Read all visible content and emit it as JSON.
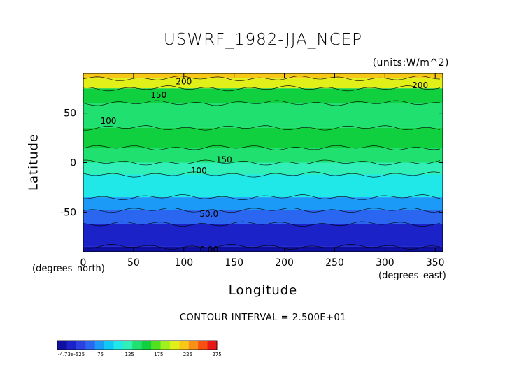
{
  "chart_data": {
    "type": "contour",
    "title": "USWRF_1982-JJA_NCEP",
    "units": "(units:W/m^2)",
    "xlabel": "Longitude",
    "ylabel": "Latitude",
    "x_unit_label": "(degrees_east)",
    "y_unit_label": "(degrees_north)",
    "xlim": [
      0,
      357.5
    ],
    "ylim": [
      -90,
      90
    ],
    "x_ticks": [
      "0",
      "50",
      "100",
      "150",
      "200",
      "250",
      "300",
      "350"
    ],
    "y_ticks": [
      "50",
      "0",
      "-50"
    ],
    "x_tick_values": [
      0,
      50,
      100,
      150,
      200,
      250,
      300,
      350
    ],
    "y_tick_values": [
      50,
      0,
      -50
    ],
    "contour_interval": "CONTOUR INTERVAL = 2.500E+01",
    "contour_labels": [
      {
        "text": "200",
        "lon": 100,
        "lat": 82
      },
      {
        "text": "150",
        "lon": 75,
        "lat": 68
      },
      {
        "text": "100",
        "lon": 25,
        "lat": 42
      },
      {
        "text": "150",
        "lon": 140,
        "lat": 3
      },
      {
        "text": "100",
        "lon": 115,
        "lat": -8
      },
      {
        "text": "50.0",
        "lon": 125,
        "lat": -52
      },
      {
        "text": "0.00",
        "lon": 125,
        "lat": -88
      },
      {
        "text": "200",
        "lon": 335,
        "lat": 78
      }
    ],
    "latitude_bands": [
      {
        "lat_top": 90,
        "lat_bottom": 85,
        "value": 230
      },
      {
        "lat_top": 85,
        "lat_bottom": 75,
        "value": 200
      },
      {
        "lat_top": 75,
        "lat_bottom": 60,
        "value": 150
      },
      {
        "lat_top": 60,
        "lat_bottom": 35,
        "value": 140
      },
      {
        "lat_top": 35,
        "lat_bottom": 15,
        "value": 150
      },
      {
        "lat_top": 15,
        "lat_bottom": 0,
        "value": 140
      },
      {
        "lat_top": 0,
        "lat_bottom": -12,
        "value": 115
      },
      {
        "lat_top": -12,
        "lat_bottom": -35,
        "value": 100
      },
      {
        "lat_top": -35,
        "lat_bottom": -48,
        "value": 75
      },
      {
        "lat_top": -48,
        "lat_bottom": -62,
        "value": 50
      },
      {
        "lat_top": -62,
        "lat_bottom": -85,
        "value": 25
      },
      {
        "lat_top": -85,
        "lat_bottom": -90,
        "value": 0
      }
    ],
    "colorbar": {
      "labels": [
        "-4.73e-525",
        "75",
        "125",
        "175",
        "225",
        "275"
      ],
      "colors": [
        "#1010a0",
        "#1a22c8",
        "#2a40e0",
        "#2a66f0",
        "#1c9af8",
        "#10c8f8",
        "#20e8e8",
        "#30f0b8",
        "#20e070",
        "#10d040",
        "#50e020",
        "#a0f020",
        "#e0f018",
        "#f8c818",
        "#f89018",
        "#f85010",
        "#e81818"
      ]
    }
  }
}
